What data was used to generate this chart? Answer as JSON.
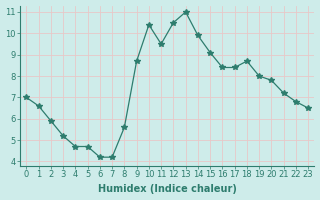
{
  "x": [
    0,
    1,
    2,
    3,
    4,
    5,
    6,
    7,
    8,
    9,
    10,
    11,
    12,
    13,
    14,
    15,
    16,
    17,
    18,
    19,
    20,
    21,
    22,
    23
  ],
  "y": [
    7.0,
    6.6,
    5.9,
    5.2,
    4.7,
    4.7,
    4.2,
    4.2,
    5.6,
    8.7,
    10.4,
    9.5,
    10.5,
    11.0,
    9.9,
    9.1,
    8.4,
    8.4,
    8.7,
    8.0,
    7.8,
    7.2,
    6.8,
    6.5
  ],
  "xlabel": "Humidex (Indice chaleur)",
  "ylabel": "",
  "ylim": [
    3.8,
    11.3
  ],
  "xlim": [
    -0.5,
    23.5
  ],
  "yticks": [
    4,
    5,
    6,
    7,
    8,
    9,
    10,
    11
  ],
  "xticks": [
    0,
    1,
    2,
    3,
    4,
    5,
    6,
    7,
    8,
    9,
    10,
    11,
    12,
    13,
    14,
    15,
    16,
    17,
    18,
    19,
    20,
    21,
    22,
    23
  ],
  "line_color": "#2e7d6e",
  "marker": "*",
  "marker_size": 4,
  "bg_color": "#ceecea",
  "grid_color": "#e8c8c8",
  "xlabel_fontsize": 7,
  "tick_fontsize": 6
}
